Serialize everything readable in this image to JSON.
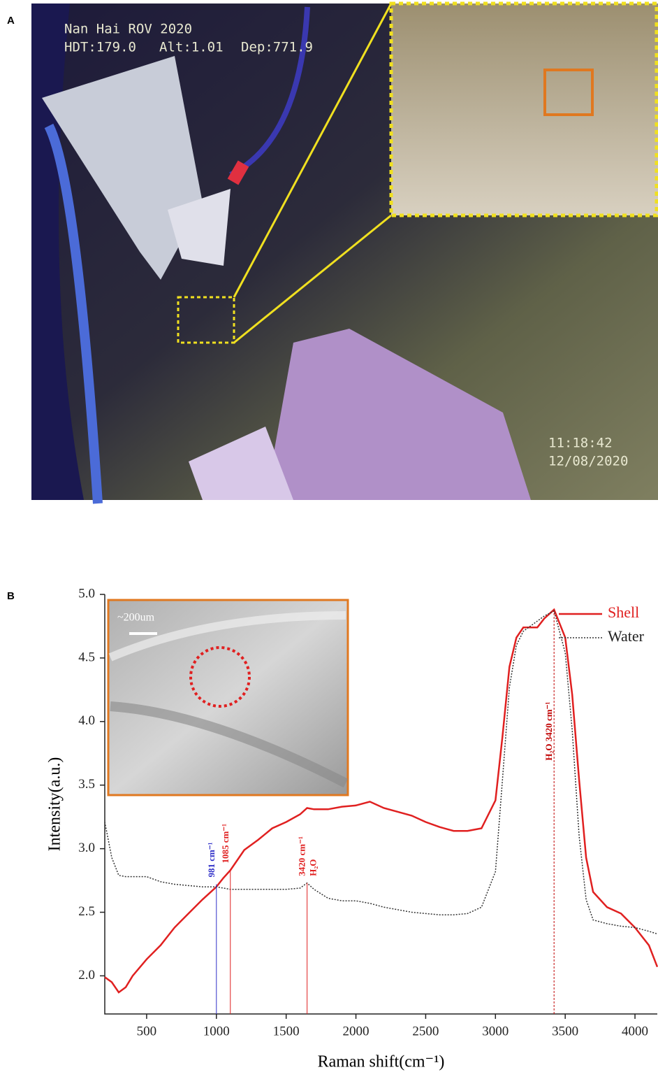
{
  "panels": [
    "A",
    "B"
  ],
  "photo": {
    "overlay_top": [
      "Nan Hai ROV 2020",
      "HDT:179.0",
      "Alt:1.01",
      "Dep:771.9"
    ],
    "time": "11:18:42",
    "date": "12/08/2020"
  },
  "inset": {
    "scale": "~200um"
  },
  "chart_data": {
    "type": "line",
    "x_label": "Raman shift(cm⁻¹)",
    "y_label": "Intensity(a.u.)",
    "x": [
      200,
      250,
      300,
      350,
      400,
      500,
      600,
      700,
      800,
      900,
      1000,
      1050,
      1100,
      1200,
      1300,
      1400,
      1500,
      1600,
      1650,
      1700,
      1800,
      1900,
      2000,
      2100,
      2200,
      2300,
      2400,
      2500,
      2600,
      2700,
      2800,
      2900,
      3000,
      3050,
      3100,
      3150,
      3200,
      3300,
      3350,
      3420,
      3500,
      3550,
      3600,
      3650,
      3700,
      3800,
      3900,
      4000,
      4100,
      4160
    ],
    "series": [
      {
        "name": "Shell",
        "color": "#e02020",
        "dash": false,
        "values": [
          1.99,
          1.95,
          1.87,
          1.91,
          2.0,
          2.13,
          2.24,
          2.38,
          2.49,
          2.6,
          2.7,
          2.77,
          2.83,
          2.99,
          3.07,
          3.16,
          3.21,
          3.27,
          3.32,
          3.31,
          3.31,
          3.33,
          3.34,
          3.37,
          3.32,
          3.29,
          3.26,
          3.21,
          3.17,
          3.14,
          3.14,
          3.16,
          3.38,
          3.88,
          4.43,
          4.66,
          4.74,
          4.74,
          4.81,
          4.88,
          4.66,
          4.21,
          3.54,
          2.93,
          2.66,
          2.54,
          2.49,
          2.38,
          2.24,
          2.07
        ]
      },
      {
        "name": "Water",
        "color": "#333333",
        "dash": true,
        "values": [
          3.21,
          2.93,
          2.79,
          2.78,
          2.78,
          2.78,
          2.74,
          2.72,
          2.71,
          2.7,
          2.7,
          2.69,
          2.68,
          2.68,
          2.68,
          2.68,
          2.68,
          2.69,
          2.73,
          2.68,
          2.61,
          2.59,
          2.59,
          2.57,
          2.54,
          2.52,
          2.5,
          2.49,
          2.48,
          2.48,
          2.49,
          2.54,
          2.82,
          3.54,
          4.27,
          4.6,
          4.71,
          4.79,
          4.83,
          4.87,
          4.54,
          3.93,
          3.1,
          2.6,
          2.44,
          2.41,
          2.39,
          2.38,
          2.35,
          2.33
        ]
      }
    ],
    "markers": [
      {
        "x": 1000,
        "y": 2.72,
        "color": "#3030c8",
        "labels": [
          "981 cm⁻¹"
        ]
      },
      {
        "x": 1100,
        "y": 2.83,
        "color": "#e02020",
        "labels": [
          "1085 cm⁻¹"
        ]
      },
      {
        "x": 1650,
        "y": 2.73,
        "color": "#e02020",
        "labels": [
          "3420 cm⁻¹",
          "H₂O"
        ]
      },
      {
        "x": 3420,
        "y": 4.87,
        "color": "#c00000",
        "labels": [
          "H₂O 3420 cm⁻¹"
        ]
      }
    ],
    "xlim": [
      200,
      4160
    ],
    "ylim": [
      1.7,
      5.0
    ],
    "xticks": [
      500,
      1000,
      1500,
      2000,
      2500,
      3000,
      3500,
      4000
    ],
    "yticks": [
      {
        "value": 2,
        "label": "2.0"
      },
      2.5,
      {
        "value": 3,
        "label": "3.0"
      },
      3.5,
      {
        "value": 4,
        "label": "4.0"
      },
      4.5,
      {
        "value": 5,
        "label": "5.0"
      }
    ]
  }
}
